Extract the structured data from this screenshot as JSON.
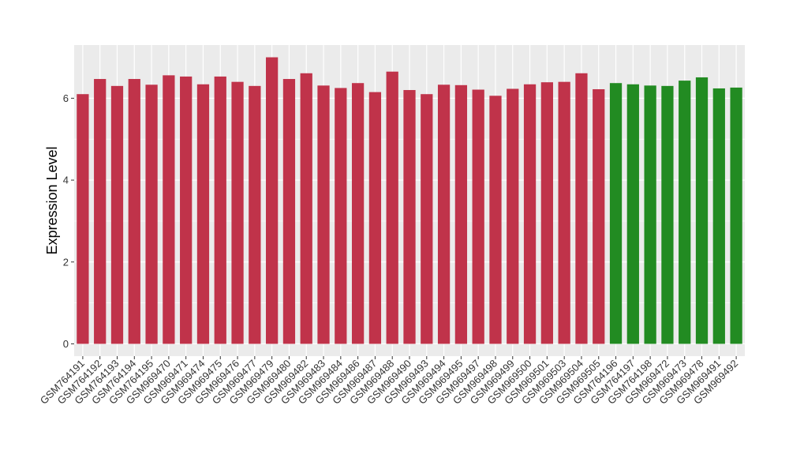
{
  "chart_data": {
    "type": "bar",
    "title": "",
    "xlabel": "",
    "ylabel": "Expression Level",
    "ylim": [
      -0.3,
      7.3
    ],
    "yticks": [
      0,
      2,
      4,
      6
    ],
    "grid": true,
    "legend": "none",
    "colors": {
      "red": "#c0334a",
      "green": "#228b22",
      "panel": "#ebebeb",
      "grid": "#ffffff"
    },
    "categories": [
      "GSM764191",
      "GSM764192",
      "GSM764193",
      "GSM764194",
      "GSM764195",
      "GSM969470",
      "GSM969471",
      "GSM969474",
      "GSM969475",
      "GSM969476",
      "GSM969477",
      "GSM969479",
      "GSM969480",
      "GSM969482",
      "GSM969483",
      "GSM969484",
      "GSM969486",
      "GSM969487",
      "GSM969488",
      "GSM969490",
      "GSM969493",
      "GSM969494",
      "GSM969495",
      "GSM969497",
      "GSM969498",
      "GSM969499",
      "GSM969500",
      "GSM969501",
      "GSM969503",
      "GSM969504",
      "GSM969505",
      "GSM764196",
      "GSM764197",
      "GSM764198",
      "GSM969472",
      "GSM969473",
      "GSM969478",
      "GSM969491",
      "GSM969492"
    ],
    "values": [
      6.1,
      6.47,
      6.3,
      6.47,
      6.33,
      6.56,
      6.53,
      6.34,
      6.53,
      6.4,
      6.3,
      7.0,
      6.47,
      6.61,
      6.31,
      6.25,
      6.37,
      6.15,
      6.65,
      6.2,
      6.1,
      6.33,
      6.32,
      6.21,
      6.06,
      6.23,
      6.34,
      6.39,
      6.4,
      6.61,
      6.22,
      6.37,
      6.34,
      6.31,
      6.3,
      6.43,
      6.51,
      6.24,
      6.26
    ],
    "groups": [
      "red",
      "red",
      "red",
      "red",
      "red",
      "red",
      "red",
      "red",
      "red",
      "red",
      "red",
      "red",
      "red",
      "red",
      "red",
      "red",
      "red",
      "red",
      "red",
      "red",
      "red",
      "red",
      "red",
      "red",
      "red",
      "red",
      "red",
      "red",
      "red",
      "red",
      "red",
      "green",
      "green",
      "green",
      "green",
      "green",
      "green",
      "green",
      "green"
    ]
  }
}
